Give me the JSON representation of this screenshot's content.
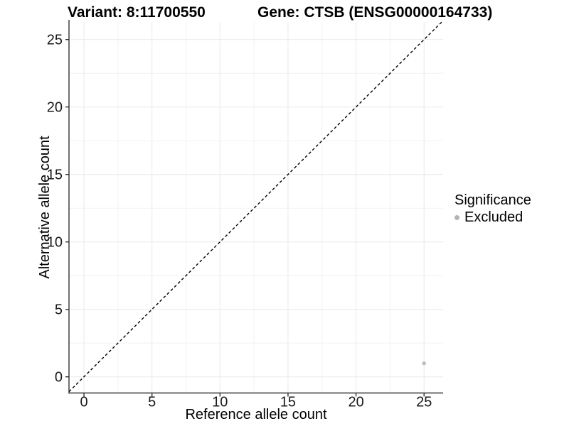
{
  "chart_data": {
    "type": "scatter",
    "titles": {
      "left": "Variant: 8:11700550",
      "right": "Gene: CTSB (ENSG00000164733)"
    },
    "xlabel": "Reference allele count",
    "ylabel": "Alternative allele count",
    "xlim": [
      -1.1,
      26.4
    ],
    "ylim": [
      -1.2,
      26.3
    ],
    "x_ticks": [
      0,
      5,
      10,
      15,
      20,
      25
    ],
    "y_ticks": [
      0,
      5,
      10,
      15,
      20,
      25
    ],
    "grid": {
      "major": true,
      "minor": true
    },
    "reference_line": {
      "kind": "identity",
      "slope": 1,
      "intercept": 0,
      "style": "dashed",
      "color": "#000000"
    },
    "series": [
      {
        "name": "Excluded",
        "color": "#bdbdbd",
        "points": [
          {
            "x": 25,
            "y": 1
          }
        ]
      }
    ],
    "legend": {
      "title": "Significance",
      "position": "right",
      "entries": [
        {
          "label": "Excluded",
          "color": "#b3b3b3"
        }
      ]
    },
    "colors": {
      "background": "#ffffff",
      "major_grid": "#e9e9e9",
      "minor_grid": "#f2f2f2",
      "axis_line": "#333333",
      "tick_mark": "#333333",
      "tick_text": "#1a1a1a"
    }
  }
}
